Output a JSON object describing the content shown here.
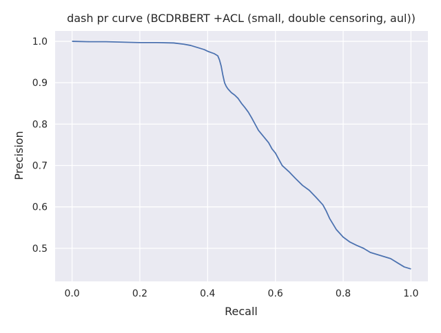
{
  "chart_data": {
    "type": "line",
    "title": "dash pr curve (BCDRBERT +ACL (small, double censoring, aul))",
    "xlabel": "Recall",
    "ylabel": "Precision",
    "xlim": [
      -0.05,
      1.05
    ],
    "ylim": [
      0.42,
      1.025
    ],
    "xticks": [
      0.0,
      0.2,
      0.4,
      0.6,
      0.8,
      1.0
    ],
    "xtick_labels": [
      "0.0",
      "0.2",
      "0.4",
      "0.6",
      "0.8",
      "1.0"
    ],
    "yticks": [
      0.5,
      0.6,
      0.7,
      0.8,
      0.9,
      1.0
    ],
    "ytick_labels": [
      "0.5",
      "0.6",
      "0.7",
      "0.8",
      "0.9",
      "1.0"
    ],
    "grid": true,
    "series": [
      {
        "color": "#4c72b0",
        "x": [
          0.0,
          0.05,
          0.1,
          0.15,
          0.2,
          0.25,
          0.3,
          0.33,
          0.35,
          0.37,
          0.39,
          0.4,
          0.41,
          0.42,
          0.43,
          0.435,
          0.44,
          0.445,
          0.45,
          0.455,
          0.46,
          0.47,
          0.48,
          0.49,
          0.5,
          0.51,
          0.52,
          0.53,
          0.54,
          0.55,
          0.56,
          0.57,
          0.58,
          0.59,
          0.6,
          0.61,
          0.62,
          0.64,
          0.66,
          0.68,
          0.7,
          0.72,
          0.74,
          0.75,
          0.76,
          0.78,
          0.8,
          0.82,
          0.84,
          0.86,
          0.88,
          0.9,
          0.92,
          0.94,
          0.96,
          0.98,
          1.0
        ],
        "y": [
          1.0,
          0.999,
          0.999,
          0.998,
          0.997,
          0.997,
          0.996,
          0.993,
          0.99,
          0.985,
          0.98,
          0.976,
          0.973,
          0.97,
          0.965,
          0.955,
          0.94,
          0.918,
          0.9,
          0.891,
          0.885,
          0.876,
          0.87,
          0.862,
          0.85,
          0.84,
          0.829,
          0.815,
          0.8,
          0.785,
          0.775,
          0.765,
          0.755,
          0.74,
          0.73,
          0.715,
          0.7,
          0.685,
          0.668,
          0.652,
          0.64,
          0.623,
          0.605,
          0.59,
          0.572,
          0.545,
          0.527,
          0.515,
          0.507,
          0.5,
          0.49,
          0.485,
          0.48,
          0.475,
          0.465,
          0.455,
          0.45
        ]
      }
    ]
  }
}
